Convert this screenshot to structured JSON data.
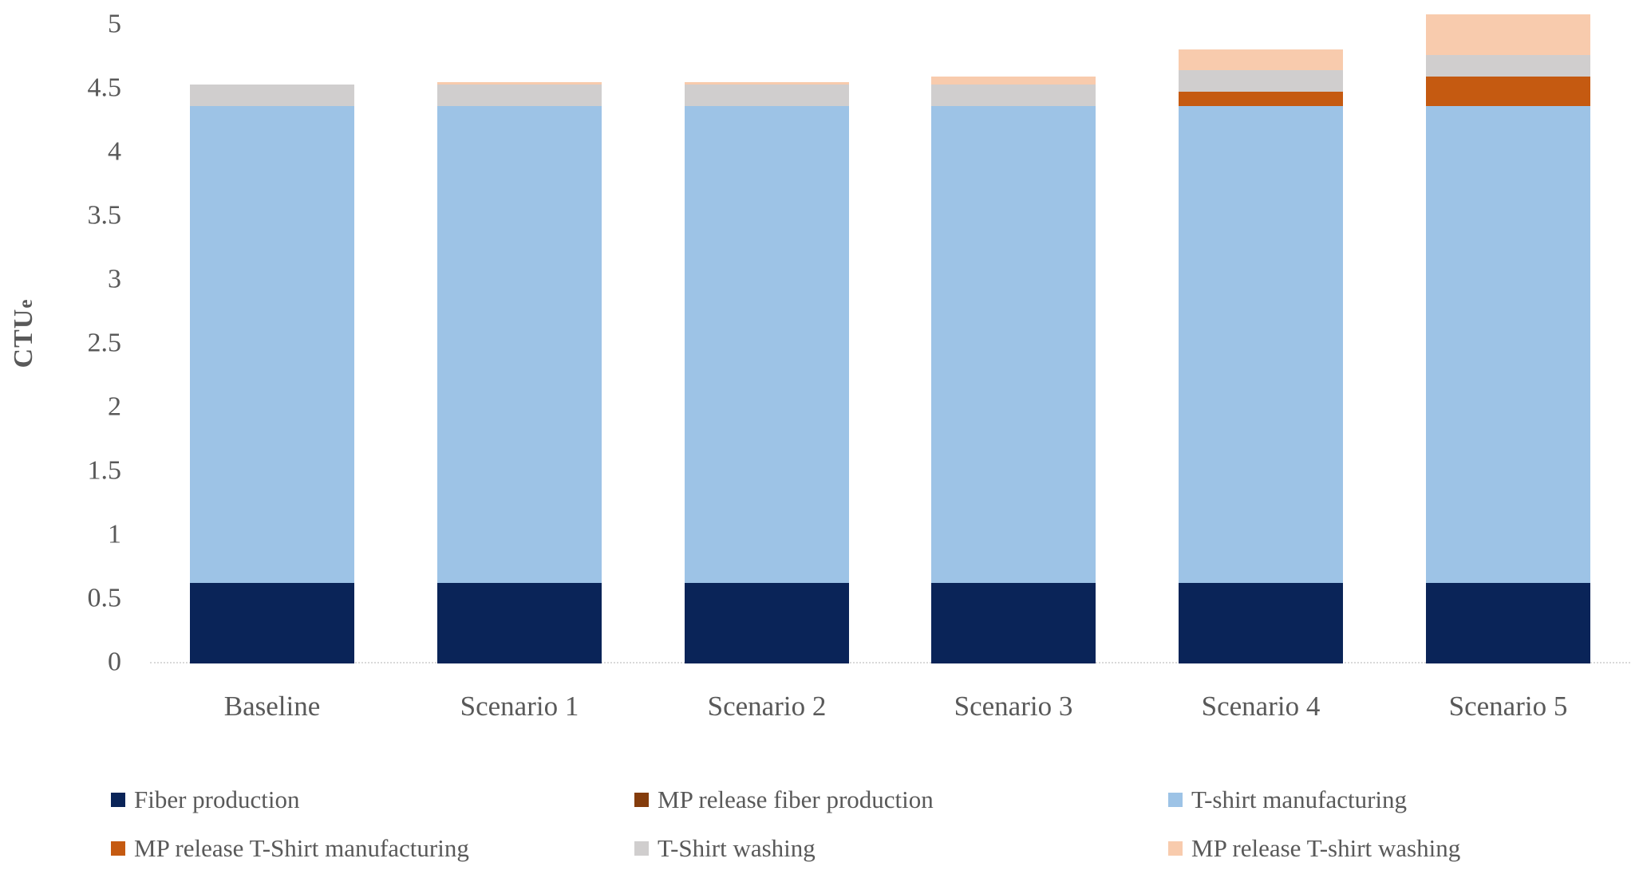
{
  "y_axis": {
    "title_main": "CTU",
    "title_sub": "e",
    "ticks": [
      "0",
      "0.5",
      "1",
      "1.5",
      "2",
      "2.5",
      "3",
      "3.5",
      "4",
      "4.5",
      "5"
    ]
  },
  "chart_data": {
    "type": "bar",
    "stacked": true,
    "title": "",
    "xlabel": "",
    "ylabel": "CTUe",
    "ylim": [
      0,
      5.2
    ],
    "grid": false,
    "legend_position": "bottom",
    "categories": [
      "Baseline",
      "Scenario 1",
      "Scenario 2",
      "Scenario 3",
      "Scenario 4",
      "Scenario 5"
    ],
    "series": [
      {
        "name": "Fiber production",
        "color": "#0a2458",
        "values": [
          0.63,
          0.63,
          0.63,
          0.63,
          0.63,
          0.63
        ]
      },
      {
        "name": "MP release fiber production",
        "color": "#843c0c",
        "values": [
          0,
          0,
          0,
          0,
          0,
          0
        ]
      },
      {
        "name": "T-shirt manufacturing",
        "color": "#9dc3e6",
        "values": [
          3.74,
          3.74,
          3.74,
          3.74,
          3.74,
          3.74
        ]
      },
      {
        "name": "MP release T-Shirt manufacturing",
        "color": "#c55a11",
        "values": [
          0,
          0,
          0,
          0,
          0.11,
          0.23
        ]
      },
      {
        "name": "T-Shirt washing",
        "color": "#d0cece",
        "values": [
          0.17,
          0.17,
          0.17,
          0.17,
          0.17,
          0.17
        ]
      },
      {
        "name": "MP release T-shirt washing",
        "color": "#f8cbad",
        "values": [
          0,
          0.02,
          0.02,
          0.06,
          0.16,
          0.32
        ]
      }
    ],
    "totals": [
      4.54,
      4.56,
      4.56,
      4.6,
      4.81,
      5.09
    ]
  },
  "colors": {
    "axis_text": "#595959",
    "axis_line": "#d9d9d9",
    "background": "#ffffff"
  }
}
